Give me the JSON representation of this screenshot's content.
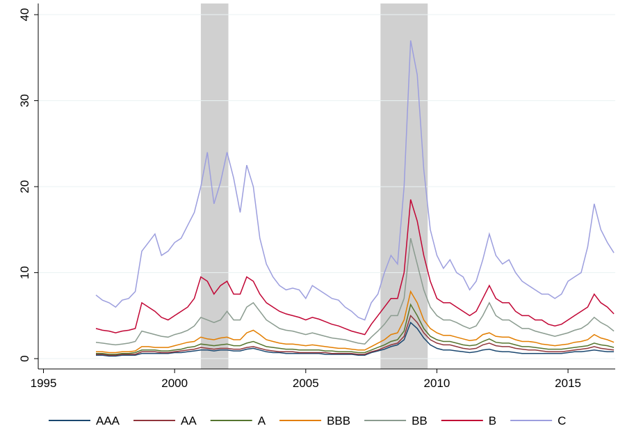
{
  "chart_data": {
    "type": "line",
    "x": [
      1997,
      1997.25,
      1997.5,
      1997.75,
      1998,
      1998.25,
      1998.5,
      1998.75,
      1999,
      1999.25,
      1999.5,
      1999.75,
      2000,
      2000.25,
      2000.5,
      2000.75,
      2001,
      2001.25,
      2001.5,
      2001.75,
      2002,
      2002.25,
      2002.5,
      2002.75,
      2003,
      2003.25,
      2003.5,
      2003.75,
      2004,
      2004.25,
      2004.5,
      2004.75,
      2005,
      2005.25,
      2005.5,
      2005.75,
      2006,
      2006.25,
      2006.5,
      2006.75,
      2007,
      2007.25,
      2007.5,
      2007.75,
      2008,
      2008.25,
      2008.5,
      2008.75,
      2009,
      2009.25,
      2009.5,
      2009.75,
      2010,
      2010.25,
      2010.5,
      2010.75,
      2011,
      2011.25,
      2011.5,
      2011.75,
      2012,
      2012.25,
      2012.5,
      2012.75,
      2013,
      2013.25,
      2013.5,
      2013.75,
      2014,
      2014.25,
      2014.5,
      2014.75,
      2015,
      2015.25,
      2015.5,
      2015.75,
      2016,
      2016.25,
      2016.5,
      2016.75
    ],
    "series": [
      {
        "name": "AAA",
        "color": "#1a476f",
        "values": [
          0.4,
          0.4,
          0.3,
          0.3,
          0.4,
          0.4,
          0.4,
          0.6,
          0.6,
          0.6,
          0.6,
          0.6,
          0.7,
          0.7,
          0.8,
          0.9,
          1.0,
          1.0,
          0.9,
          1.0,
          1.0,
          0.9,
          0.9,
          1.1,
          1.2,
          1.0,
          0.8,
          0.7,
          0.7,
          0.6,
          0.6,
          0.6,
          0.6,
          0.6,
          0.6,
          0.5,
          0.5,
          0.5,
          0.5,
          0.5,
          0.4,
          0.4,
          0.7,
          0.9,
          1.1,
          1.4,
          1.6,
          2.2,
          4.2,
          3.5,
          2.4,
          1.6,
          1.2,
          1.0,
          1.0,
          0.9,
          0.8,
          0.7,
          0.8,
          1.0,
          1.1,
          0.9,
          0.8,
          0.8,
          0.7,
          0.6,
          0.6,
          0.6,
          0.6,
          0.6,
          0.6,
          0.6,
          0.7,
          0.8,
          0.8,
          0.9,
          1.0,
          0.9,
          0.8,
          0.8
        ]
      },
      {
        "name": "AA",
        "color": "#90353b",
        "values": [
          0.5,
          0.5,
          0.4,
          0.4,
          0.5,
          0.5,
          0.5,
          0.8,
          0.8,
          0.8,
          0.7,
          0.7,
          0.8,
          0.9,
          1.0,
          1.1,
          1.3,
          1.2,
          1.1,
          1.2,
          1.2,
          1.1,
          1.1,
          1.3,
          1.4,
          1.2,
          1.0,
          0.9,
          0.8,
          0.8,
          0.8,
          0.7,
          0.7,
          0.7,
          0.7,
          0.7,
          0.6,
          0.6,
          0.6,
          0.6,
          0.5,
          0.5,
          0.8,
          1.0,
          1.3,
          1.6,
          1.8,
          2.6,
          5.0,
          4.2,
          3.0,
          2.2,
          1.8,
          1.6,
          1.6,
          1.4,
          1.2,
          1.1,
          1.2,
          1.6,
          1.8,
          1.5,
          1.4,
          1.4,
          1.2,
          1.1,
          1.0,
          1.0,
          0.9,
          0.8,
          0.8,
          0.8,
          0.9,
          1.0,
          1.1,
          1.2,
          1.4,
          1.2,
          1.1,
          1.0
        ]
      },
      {
        "name": "A",
        "color": "#55752f",
        "values": [
          0.6,
          0.6,
          0.5,
          0.5,
          0.6,
          0.6,
          0.7,
          1.0,
          1.0,
          1.0,
          0.9,
          0.9,
          1.0,
          1.1,
          1.3,
          1.4,
          1.7,
          1.6,
          1.5,
          1.6,
          1.7,
          1.5,
          1.5,
          1.8,
          2.0,
          1.7,
          1.4,
          1.3,
          1.2,
          1.1,
          1.1,
          1.0,
          1.0,
          1.0,
          1.0,
          0.9,
          0.9,
          0.8,
          0.8,
          0.8,
          0.7,
          0.7,
          1.0,
          1.3,
          1.6,
          2.0,
          2.2,
          3.2,
          6.3,
          5.0,
          3.5,
          2.6,
          2.2,
          2.0,
          2.0,
          1.8,
          1.6,
          1.5,
          1.6,
          2.0,
          2.3,
          1.9,
          1.8,
          1.8,
          1.6,
          1.4,
          1.4,
          1.3,
          1.2,
          1.1,
          1.1,
          1.1,
          1.2,
          1.3,
          1.4,
          1.5,
          1.8,
          1.6,
          1.5,
          1.3
        ]
      },
      {
        "name": "BBB",
        "color": "#e37e00",
        "values": [
          0.8,
          0.8,
          0.7,
          0.7,
          0.8,
          0.8,
          0.9,
          1.4,
          1.4,
          1.3,
          1.3,
          1.3,
          1.5,
          1.7,
          1.9,
          2.0,
          2.5,
          2.3,
          2.2,
          2.4,
          2.5,
          2.2,
          2.2,
          3.0,
          3.3,
          2.8,
          2.2,
          2.0,
          1.8,
          1.7,
          1.7,
          1.6,
          1.5,
          1.6,
          1.5,
          1.4,
          1.3,
          1.2,
          1.2,
          1.1,
          1.0,
          1.0,
          1.4,
          1.8,
          2.2,
          2.8,
          3.0,
          4.5,
          7.8,
          6.5,
          4.5,
          3.5,
          3.0,
          2.7,
          2.7,
          2.5,
          2.3,
          2.1,
          2.2,
          2.8,
          3.0,
          2.6,
          2.5,
          2.5,
          2.2,
          2.0,
          2.0,
          1.9,
          1.7,
          1.6,
          1.5,
          1.6,
          1.7,
          1.9,
          2.0,
          2.2,
          2.8,
          2.4,
          2.2,
          1.9
        ]
      },
      {
        "name": "BB",
        "color": "#8a9b8f",
        "values": [
          1.9,
          1.8,
          1.7,
          1.6,
          1.7,
          1.8,
          2.0,
          3.2,
          3.0,
          2.8,
          2.6,
          2.5,
          2.8,
          3.0,
          3.3,
          3.8,
          4.8,
          4.5,
          4.2,
          4.5,
          5.5,
          4.5,
          4.5,
          6.0,
          6.5,
          5.5,
          4.5,
          4.0,
          3.5,
          3.3,
          3.2,
          3.0,
          2.8,
          3.0,
          2.8,
          2.6,
          2.4,
          2.3,
          2.2,
          2.0,
          1.8,
          1.7,
          2.5,
          3.2,
          4.0,
          5.0,
          5.0,
          7.0,
          14.0,
          11.0,
          8.0,
          6.0,
          5.0,
          4.5,
          4.5,
          4.2,
          3.8,
          3.5,
          3.8,
          5.0,
          6.5,
          5.0,
          4.5,
          4.5,
          4.0,
          3.5,
          3.5,
          3.2,
          3.0,
          2.8,
          2.6,
          2.8,
          3.0,
          3.3,
          3.5,
          4.0,
          4.8,
          4.2,
          3.8,
          3.2
        ]
      },
      {
        "name": "B",
        "color": "#c10534",
        "values": [
          3.5,
          3.3,
          3.2,
          3.0,
          3.2,
          3.3,
          3.5,
          6.5,
          6.0,
          5.5,
          4.8,
          4.5,
          5.0,
          5.5,
          6.0,
          7.0,
          9.5,
          9.0,
          7.5,
          8.5,
          9.0,
          7.5,
          7.5,
          9.5,
          9.0,
          7.5,
          6.5,
          6.0,
          5.5,
          5.2,
          5.0,
          4.8,
          4.5,
          4.8,
          4.6,
          4.3,
          4.0,
          3.8,
          3.5,
          3.2,
          3.0,
          2.8,
          4.0,
          5.0,
          6.0,
          7.0,
          7.0,
          10.0,
          18.5,
          16.0,
          12.0,
          9.0,
          7.0,
          6.5,
          6.5,
          6.0,
          5.5,
          5.0,
          5.5,
          7.0,
          8.5,
          7.0,
          6.5,
          6.5,
          5.5,
          5.0,
          5.0,
          4.5,
          4.5,
          4.0,
          3.8,
          4.0,
          4.5,
          5.0,
          5.5,
          6.0,
          7.5,
          6.5,
          6.0,
          5.2
        ]
      },
      {
        "name": "C",
        "color": "#9c9ede",
        "values": [
          7.4,
          6.8,
          6.5,
          6.0,
          6.8,
          7.0,
          7.8,
          12.5,
          13.5,
          14.5,
          12.0,
          12.5,
          13.5,
          14.0,
          15.5,
          17.0,
          20.0,
          24.0,
          18.0,
          20.5,
          24.0,
          21.0,
          17.0,
          22.5,
          20.0,
          14.0,
          11.0,
          9.5,
          8.5,
          8.0,
          8.2,
          8.0,
          7.0,
          8.5,
          8.0,
          7.5,
          7.0,
          6.8,
          6.0,
          5.5,
          4.8,
          4.5,
          6.5,
          7.5,
          10.0,
          12.0,
          11.0,
          20.0,
          37.0,
          33.0,
          22.0,
          15.0,
          12.0,
          10.5,
          11.5,
          10.0,
          9.5,
          8.0,
          9.0,
          11.5,
          14.5,
          12.0,
          11.0,
          11.5,
          10.0,
          9.0,
          8.5,
          8.0,
          7.5,
          7.5,
          7.0,
          7.5,
          9.0,
          9.5,
          10.0,
          13.0,
          18.0,
          15.0,
          13.5,
          12.3
        ]
      }
    ],
    "shaded_regions": [
      [
        2001.0,
        2002.05
      ],
      [
        2007.85,
        2009.65
      ]
    ],
    "shade_color": "#d0d0d0",
    "xlim": [
      1994.8,
      2016.8
    ],
    "xticks": [
      1995,
      2000,
      2005,
      2010,
      2015
    ],
    "ylim": [
      -1.2,
      41.3
    ],
    "yticks": [
      0,
      10,
      20,
      30,
      40
    ],
    "grid": true,
    "legend": "bottom"
  }
}
